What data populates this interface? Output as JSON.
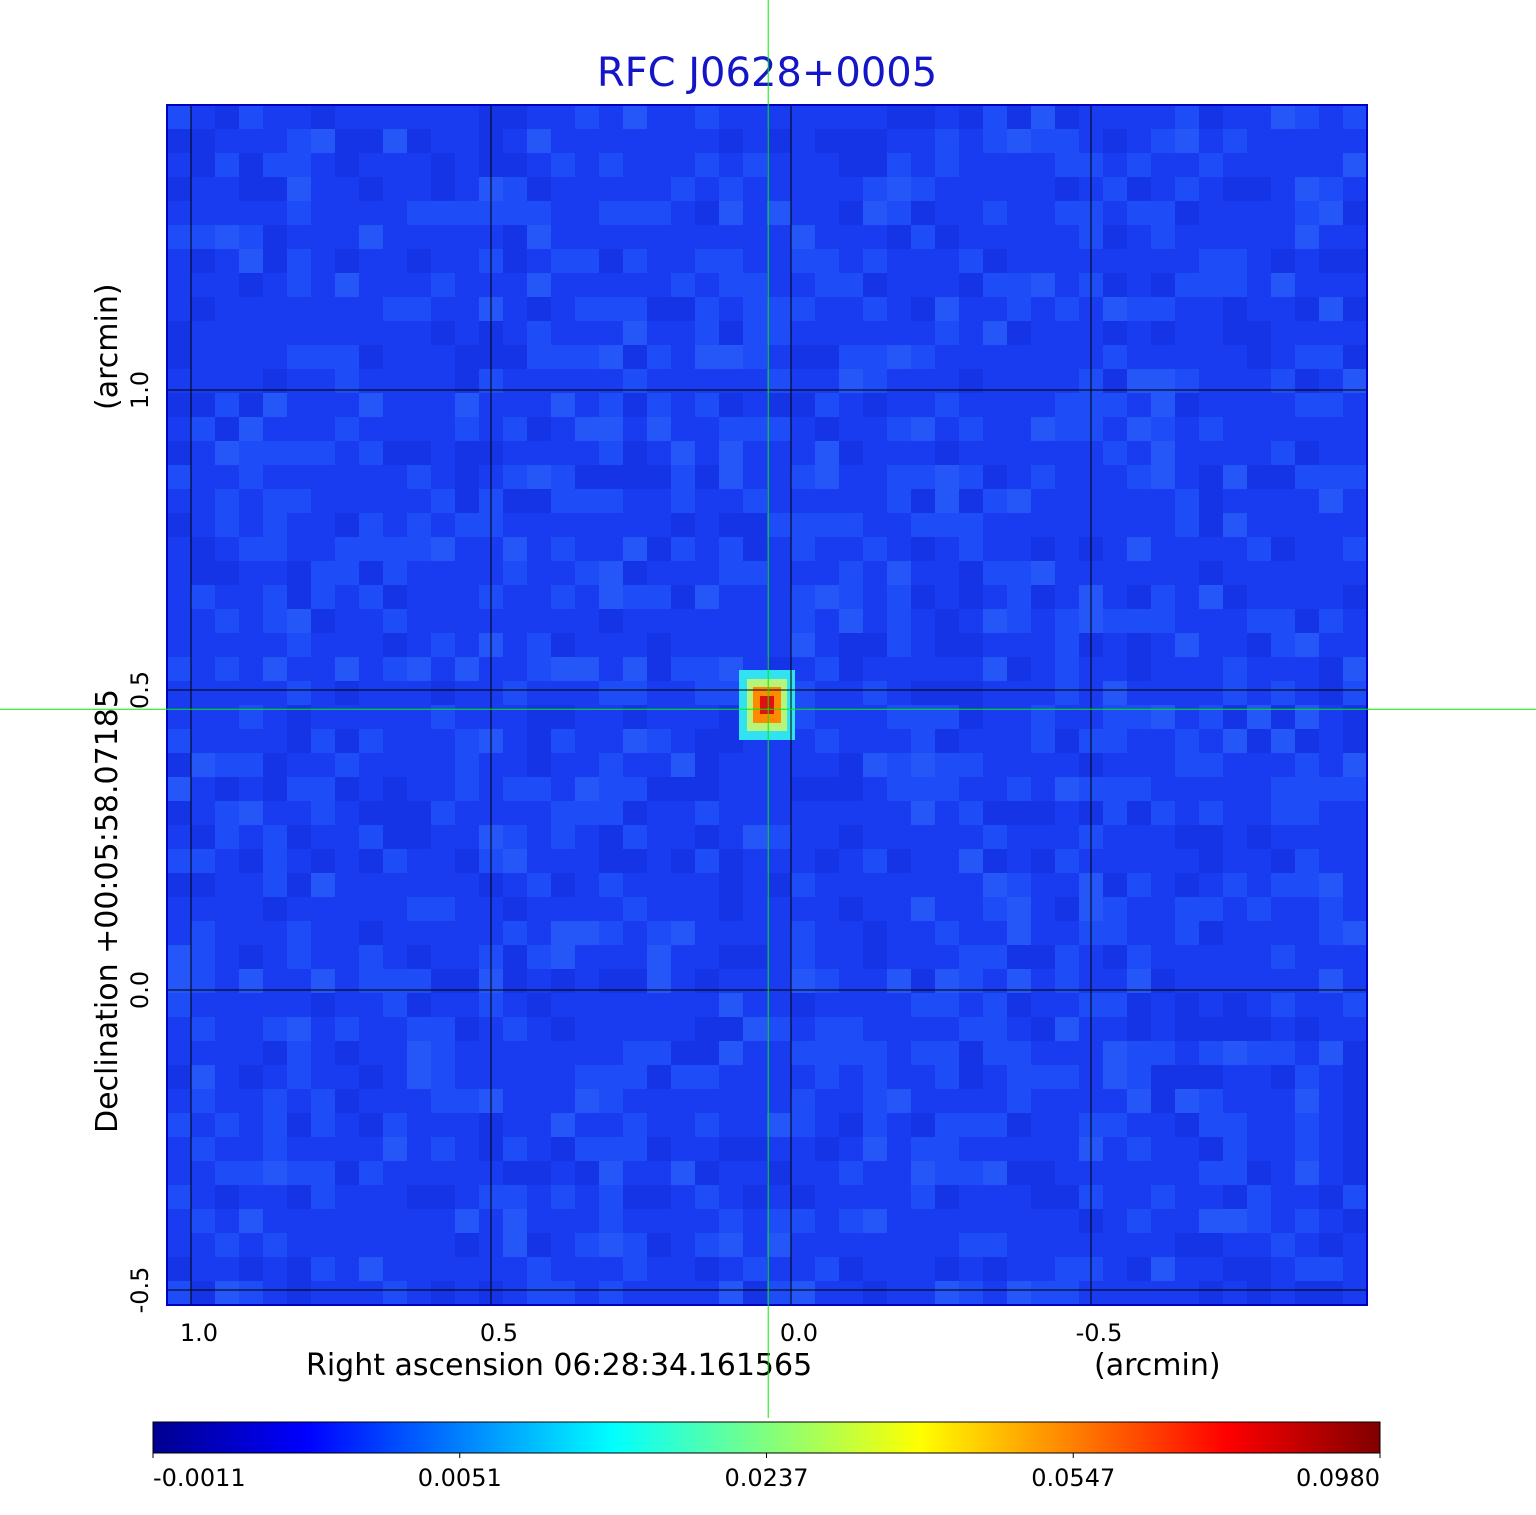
{
  "chart_data": {
    "type": "heatmap",
    "title": "RFC J0628+0005",
    "xlabel": "Right ascension  06:28:34.161565",
    "xunit": "(arcmin)",
    "ylabel": "Declination  +00:05:58.07185",
    "yunit": "(arcmin)",
    "xlim": [
      1.04,
      -0.96
    ],
    "ylim": [
      -0.525,
      1.475
    ],
    "xticks": [
      1.0,
      0.5,
      0.0,
      -0.5
    ],
    "xtick_labels": [
      "1.0",
      "0.5",
      "0.0",
      "-0.5"
    ],
    "yticks": [
      1.0,
      0.5,
      0.0,
      -0.5
    ],
    "ytick_labels": [
      "1.0",
      "0.5",
      "0.0",
      "-0.5"
    ],
    "grid": true,
    "crosshair": {
      "x": 0.038,
      "y": 0.468
    },
    "source": {
      "x": 0.04,
      "y": 0.475,
      "peak": 0.098
    },
    "colorbar": {
      "tick_labels": [
        "-0.0011",
        "0.0051",
        "0.0237",
        "0.0547",
        "0.0980"
      ],
      "min": -0.0011,
      "max": 0.098
    },
    "colors": {
      "title": "#1515c8",
      "background_map": "#1a3cf0",
      "grid": "#000000",
      "crosshair": "#00ee00"
    }
  }
}
